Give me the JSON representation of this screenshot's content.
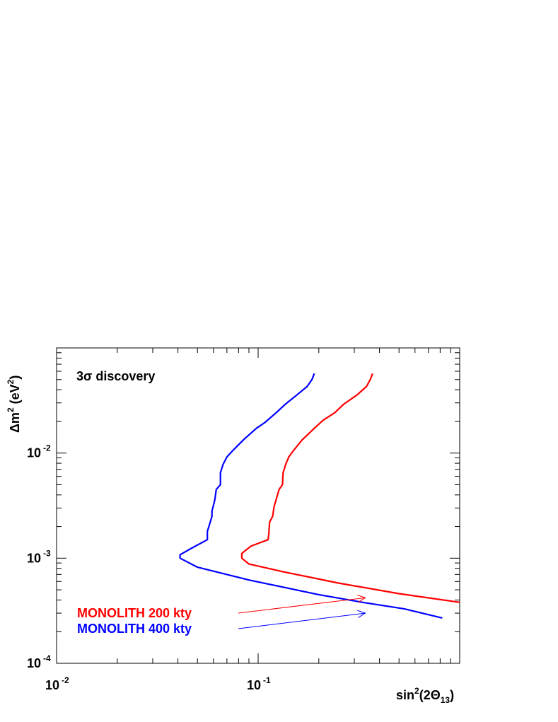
{
  "chart_data": {
    "type": "line",
    "title": "",
    "xlabel": "sin",
    "xlabel_sup": "2",
    "xlabel_mid": "(2Θ",
    "xlabel_sub": "13",
    "xlabel_end": ")",
    "ylabel": "Δm",
    "ylabel_sup1": "2",
    "ylabel_mid": " (eV",
    "ylabel_sup2": "2",
    "ylabel_end": ")",
    "xscale": "log",
    "yscale": "log",
    "xlim": [
      0.01,
      1.0
    ],
    "ylim": [
      0.0001,
      0.1
    ],
    "xticks": [
      {
        "base": "10",
        "exp": "-2",
        "value": 0.01
      },
      {
        "base": "10",
        "exp": "-1",
        "value": 0.1
      }
    ],
    "yticks": [
      {
        "base": "10",
        "exp": "-4",
        "value": 0.0001
      },
      {
        "base": "10",
        "exp": "-3",
        "value": 0.001
      },
      {
        "base": "10",
        "exp": "-2",
        "value": 0.01
      }
    ],
    "annotation": "3σ discovery",
    "grid": false,
    "series": [
      {
        "name": "MONOLITH 200 kty",
        "color": "#ff0000",
        "points": [
          [
            0.37,
            0.0571
          ],
          [
            0.36,
            0.05
          ],
          [
            0.345,
            0.043
          ],
          [
            0.31,
            0.0358
          ],
          [
            0.265,
            0.029
          ],
          [
            0.24,
            0.0242
          ],
          [
            0.21,
            0.0205
          ],
          [
            0.19,
            0.0172
          ],
          [
            0.165,
            0.0133
          ],
          [
            0.15,
            0.0106
          ],
          [
            0.142,
            0.0092
          ],
          [
            0.137,
            0.0078
          ],
          [
            0.133,
            0.0065
          ],
          [
            0.132,
            0.005
          ],
          [
            0.127,
            0.0045
          ],
          [
            0.12,
            0.0031
          ],
          [
            0.118,
            0.0025
          ],
          [
            0.114,
            0.0022
          ],
          [
            0.113,
            0.0017
          ],
          [
            0.112,
            0.0015
          ],
          [
            0.092,
            0.0013
          ],
          [
            0.083,
            0.00111
          ],
          [
            0.083,
            0.001
          ],
          [
            0.09,
            0.00088
          ],
          [
            0.13,
            0.00075
          ],
          [
            0.25,
            0.00058
          ],
          [
            0.5,
            0.00046
          ],
          [
            1.0,
            0.00038
          ]
        ]
      },
      {
        "name": "MONOLITH 400 kty",
        "color": "#0000ff",
        "points": [
          [
            0.19,
            0.0571
          ],
          [
            0.185,
            0.05
          ],
          [
            0.175,
            0.043
          ],
          [
            0.156,
            0.0358
          ],
          [
            0.136,
            0.029
          ],
          [
            0.123,
            0.0242
          ],
          [
            0.108,
            0.0195
          ],
          [
            0.098,
            0.0172
          ],
          [
            0.085,
            0.0135
          ],
          [
            0.075,
            0.0106
          ],
          [
            0.07,
            0.0092
          ],
          [
            0.067,
            0.0078
          ],
          [
            0.065,
            0.0065
          ],
          [
            0.065,
            0.005
          ],
          [
            0.062,
            0.0045
          ],
          [
            0.061,
            0.0036
          ],
          [
            0.059,
            0.0028
          ],
          [
            0.059,
            0.0025
          ],
          [
            0.057,
            0.002
          ],
          [
            0.056,
            0.0018
          ],
          [
            0.056,
            0.0015
          ],
          [
            0.047,
            0.00125
          ],
          [
            0.041,
            0.00108
          ],
          [
            0.041,
            0.001
          ],
          [
            0.05,
            0.00082
          ],
          [
            0.09,
            0.00062
          ],
          [
            0.2,
            0.00045
          ],
          [
            0.33,
            0.00038
          ],
          [
            0.53,
            0.00033
          ],
          [
            0.82,
            0.00027
          ]
        ]
      }
    ],
    "legend": [
      {
        "label": "MONOLITH 200 kty",
        "color": "#ff0000",
        "arrow_to": [
          0.34,
          0.00042
        ]
      },
      {
        "label": "MONOLITH 400 kty",
        "color": "#0000ff",
        "arrow_to": [
          0.34,
          0.0003
        ]
      }
    ]
  }
}
